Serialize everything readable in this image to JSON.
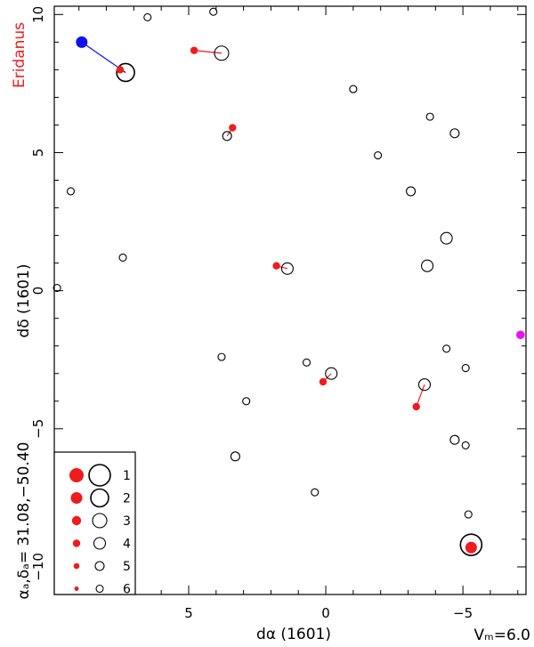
{
  "chart_data": {
    "type": "scatter",
    "constellation": "Eridanus",
    "xlabel": "dα  (1601)",
    "ylabel": "dδ  (1601)",
    "center_label": "αₐ,δₐ= 31.08,−50.40",
    "vm_label": "Vₘ=6.0",
    "xlim": [
      9.9,
      -7.3
    ],
    "ylim": [
      -11,
      10.3
    ],
    "x_ticks": [
      5,
      0,
      -5
    ],
    "x_tick_labels": [
      "5",
      "0",
      "−5"
    ],
    "y_ticks": [
      10,
      5,
      0,
      -5,
      -10
    ],
    "y_tick_labels": [
      "10",
      "5",
      "0",
      "−5",
      "−10"
    ],
    "colors": {
      "observed": "#ee1c1c",
      "ref": "#000000",
      "blue_star": "#1010ee",
      "magenta_star": "#ee10ee",
      "constellation_label": "#ee1c1c"
    },
    "ref_stars": [
      {
        "x": 6.5,
        "y": 9.9,
        "mag": 6
      },
      {
        "x": 4.1,
        "y": 10.1,
        "mag": 6
      },
      {
        "x": 3.8,
        "y": 8.6,
        "mag": 3
      },
      {
        "x": 7.3,
        "y": 7.9,
        "mag": 2
      },
      {
        "x": -1.0,
        "y": 7.3,
        "mag": 6
      },
      {
        "x": -3.8,
        "y": 6.3,
        "mag": 6
      },
      {
        "x": -4.7,
        "y": 5.7,
        "mag": 5
      },
      {
        "x": 3.6,
        "y": 5.6,
        "mag": 5
      },
      {
        "x": -1.9,
        "y": 4.9,
        "mag": 6
      },
      {
        "x": 9.3,
        "y": 3.6,
        "mag": 6
      },
      {
        "x": -3.1,
        "y": 3.6,
        "mag": 5
      },
      {
        "x": -4.4,
        "y": 1.9,
        "mag": 4
      },
      {
        "x": 7.4,
        "y": 1.2,
        "mag": 6
      },
      {
        "x": 1.4,
        "y": 0.8,
        "mag": 4
      },
      {
        "x": -3.7,
        "y": 0.9,
        "mag": 4
      },
      {
        "x": 9.8,
        "y": 0.1,
        "mag": 6
      },
      {
        "x": -4.4,
        "y": -2.1,
        "mag": 6
      },
      {
        "x": 3.8,
        "y": -2.4,
        "mag": 6
      },
      {
        "x": 0.7,
        "y": -2.6,
        "mag": 6
      },
      {
        "x": -5.1,
        "y": -2.8,
        "mag": 6
      },
      {
        "x": -0.2,
        "y": -3.0,
        "mag": 4
      },
      {
        "x": -3.6,
        "y": -3.4,
        "mag": 4
      },
      {
        "x": 2.9,
        "y": -4.0,
        "mag": 6
      },
      {
        "x": -4.7,
        "y": -5.4,
        "mag": 5
      },
      {
        "x": -5.1,
        "y": -5.6,
        "mag": 6
      },
      {
        "x": 3.3,
        "y": -6.0,
        "mag": 5
      },
      {
        "x": 0.4,
        "y": -7.3,
        "mag": 6
      },
      {
        "x": -5.2,
        "y": -8.1,
        "mag": 6
      },
      {
        "x": -5.3,
        "y": -9.2,
        "mag": 1
      }
    ],
    "observed_stars": [
      {
        "x": 7.5,
        "y": 8.0,
        "mag": 4
      },
      {
        "x": 4.8,
        "y": 8.7,
        "mag": 4
      },
      {
        "x": 3.4,
        "y": 5.9,
        "mag": 4
      },
      {
        "x": 1.8,
        "y": 0.9,
        "mag": 4
      },
      {
        "x": 0.1,
        "y": -3.3,
        "mag": 4
      },
      {
        "x": -3.3,
        "y": -4.2,
        "mag": 4
      },
      {
        "x": -5.3,
        "y": -9.3,
        "mag": 2
      }
    ],
    "connections": [
      {
        "x1": 7.5,
        "y1": 8.0,
        "x2": 7.3,
        "y2": 7.9
      },
      {
        "x1": 4.8,
        "y1": 8.7,
        "x2": 3.8,
        "y2": 8.6
      },
      {
        "x1": 3.4,
        "y1": 5.9,
        "x2": 3.6,
        "y2": 5.6
      },
      {
        "x1": 1.8,
        "y1": 0.9,
        "x2": 1.4,
        "y2": 0.8
      },
      {
        "x1": 0.1,
        "y1": -3.3,
        "x2": -0.2,
        "y2": -3.0
      },
      {
        "x1": -3.3,
        "y1": -4.2,
        "x2": -3.6,
        "y2": -3.4
      }
    ],
    "blue_star": {
      "x": 8.9,
      "y": 9.0,
      "mag": 3,
      "link_to": {
        "x": 7.3,
        "y": 7.9
      }
    },
    "magenta_star": {
      "x": -7.1,
      "y": -1.6,
      "mag": 4
    },
    "legend": {
      "entries": [
        "1",
        "2",
        "3",
        "4",
        "5",
        "6"
      ],
      "mags": [
        1,
        2,
        3,
        4,
        5,
        6
      ]
    }
  }
}
